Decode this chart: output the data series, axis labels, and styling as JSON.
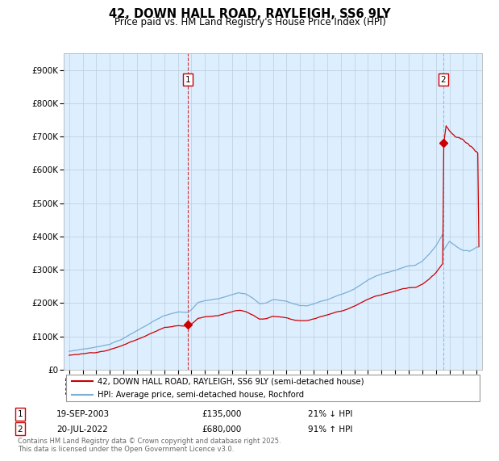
{
  "title": "42, DOWN HALL ROAD, RAYLEIGH, SS6 9LY",
  "subtitle": "Price paid vs. HM Land Registry's House Price Index (HPI)",
  "legend_line1": "42, DOWN HALL ROAD, RAYLEIGH, SS6 9LY (semi-detached house)",
  "legend_line2": "HPI: Average price, semi-detached house, Rochford",
  "sale1_date": "19-SEP-2003",
  "sale1_price": "£135,000",
  "sale1_hpi": "21% ↓ HPI",
  "sale2_date": "20-JUL-2022",
  "sale2_price": "£680,000",
  "sale2_hpi": "91% ↑ HPI",
  "footer": "Contains HM Land Registry data © Crown copyright and database right 2025.\nThis data is licensed under the Open Government Licence v3.0.",
  "ylim": [
    0,
    950000
  ],
  "yticks": [
    0,
    100000,
    200000,
    300000,
    400000,
    500000,
    600000,
    700000,
    800000,
    900000
  ],
  "ytick_labels": [
    "£0",
    "£100K",
    "£200K",
    "£300K",
    "£400K",
    "£500K",
    "£600K",
    "£700K",
    "£800K",
    "£900K"
  ],
  "hpi_color": "#7bafd4",
  "price_color": "#cc0000",
  "vline1_color": "#cc0000",
  "vline2_color": "#7bafd4",
  "chart_bg": "#ddeeff",
  "sale1_year": 2003.72,
  "sale2_year": 2022.55,
  "sale1_price_val": 135000,
  "sale2_price_val": 680000,
  "background_color": "#ffffff",
  "grid_color": "#bbccdd"
}
